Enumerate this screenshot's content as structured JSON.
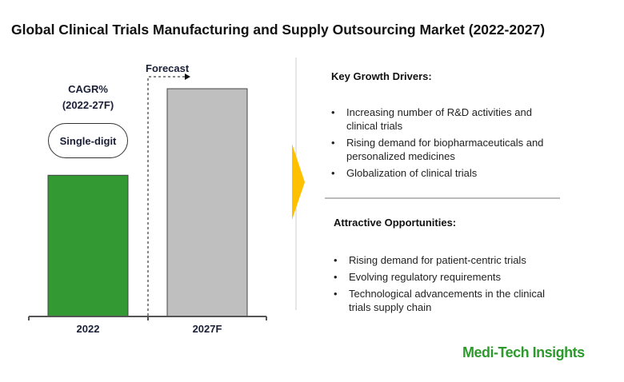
{
  "title": "Global Clinical Trials Manufacturing and Supply Outsourcing Market (2022-2027)",
  "chart_data": {
    "type": "bar",
    "categories": [
      "2022",
      "2027F"
    ],
    "values": [
      62,
      100
    ],
    "value_note": "relative bar heights, no axis values shown",
    "colors": [
      "#339933",
      "#bfbfbf"
    ],
    "cagr_label": "CAGR%",
    "cagr_period": "(2022-27F)",
    "cagr_value": "Single-digit",
    "forecast_label": "Forecast"
  },
  "drivers": {
    "heading": "Key Growth Drivers:",
    "items": [
      "Increasing number of R&D activities and clinical trials",
      "Rising demand for biopharmaceuticals and personalized medicines",
      "Globalization of clinical trials"
    ]
  },
  "opportunities": {
    "heading": "Attractive Opportunities:",
    "items": [
      "Rising demand for patient-centric trials",
      "Evolving regulatory requirements",
      "Technological advancements in the clinical trials supply chain"
    ]
  },
  "brand": "Medi-Tech Insights",
  "accent": "#ffc000"
}
